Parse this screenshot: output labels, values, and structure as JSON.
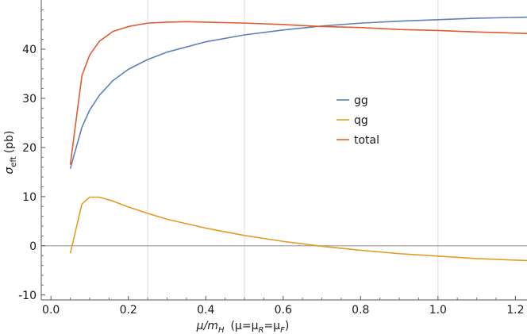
{
  "chart_data": {
    "type": "line",
    "xlabel": {
      "main": "μ/m",
      "sub": "H",
      "paren": "(μ=μ",
      "sub_r": "R",
      "eq": "=μ",
      "sub_f": "F",
      "close": ")"
    },
    "ylabel": {
      "main": "σ",
      "sub": "eft",
      "unit": "(pb)"
    },
    "xlim": [
      -0.025,
      1.23
    ],
    "ylim": [
      -11,
      50
    ],
    "xticks": [
      0.0,
      0.2,
      0.4,
      0.6,
      0.8,
      1.0,
      1.2
    ],
    "xtick_labels": [
      "0.0",
      "0.2",
      "0.4",
      "0.6",
      "0.8",
      "1.0",
      "1.2"
    ],
    "yticks": [
      -10,
      0,
      10,
      20,
      30,
      40
    ],
    "ytick_labels": [
      "-10",
      "0",
      "10",
      "20",
      "30",
      "40"
    ],
    "gridlines_x": [
      0.25,
      0.5,
      1.0
    ],
    "zero_line": 0,
    "legend_position": "middle-right",
    "series": [
      {
        "name": "gg",
        "color": "#5e81b5",
        "x": [
          0.05,
          0.08,
          0.1,
          0.125,
          0.16,
          0.2,
          0.25,
          0.3,
          0.4,
          0.5,
          0.6,
          0.7,
          0.8,
          0.9,
          1.0,
          1.1,
          1.23
        ],
        "y": [
          15.7,
          24.1,
          27.6,
          30.6,
          33.6,
          35.9,
          37.9,
          39.4,
          41.5,
          42.9,
          43.9,
          44.7,
          45.3,
          45.7,
          46.0,
          46.3,
          46.5
        ]
      },
      {
        "name": "qg",
        "color": "#e19c24",
        "x": [
          0.05,
          0.08,
          0.1,
          0.125,
          0.16,
          0.2,
          0.25,
          0.3,
          0.4,
          0.5,
          0.6,
          0.7,
          0.8,
          0.9,
          1.0,
          1.1,
          1.23
        ],
        "y": [
          -1.5,
          8.5,
          9.9,
          9.9,
          9.1,
          7.9,
          6.6,
          5.4,
          3.6,
          2.1,
          0.9,
          -0.1,
          -0.9,
          -1.6,
          -2.1,
          -2.6,
          -3.0
        ]
      },
      {
        "name": "total",
        "color": "#e05b30",
        "x": [
          0.05,
          0.08,
          0.1,
          0.125,
          0.16,
          0.2,
          0.25,
          0.3,
          0.35,
          0.4,
          0.5,
          0.6,
          0.7,
          0.8,
          0.9,
          1.0,
          1.1,
          1.23
        ],
        "y": [
          16.5,
          34.6,
          38.8,
          41.6,
          43.6,
          44.6,
          45.3,
          45.5,
          45.6,
          45.5,
          45.3,
          45.0,
          44.6,
          44.4,
          44.0,
          43.8,
          43.5,
          43.2
        ]
      }
    ]
  }
}
